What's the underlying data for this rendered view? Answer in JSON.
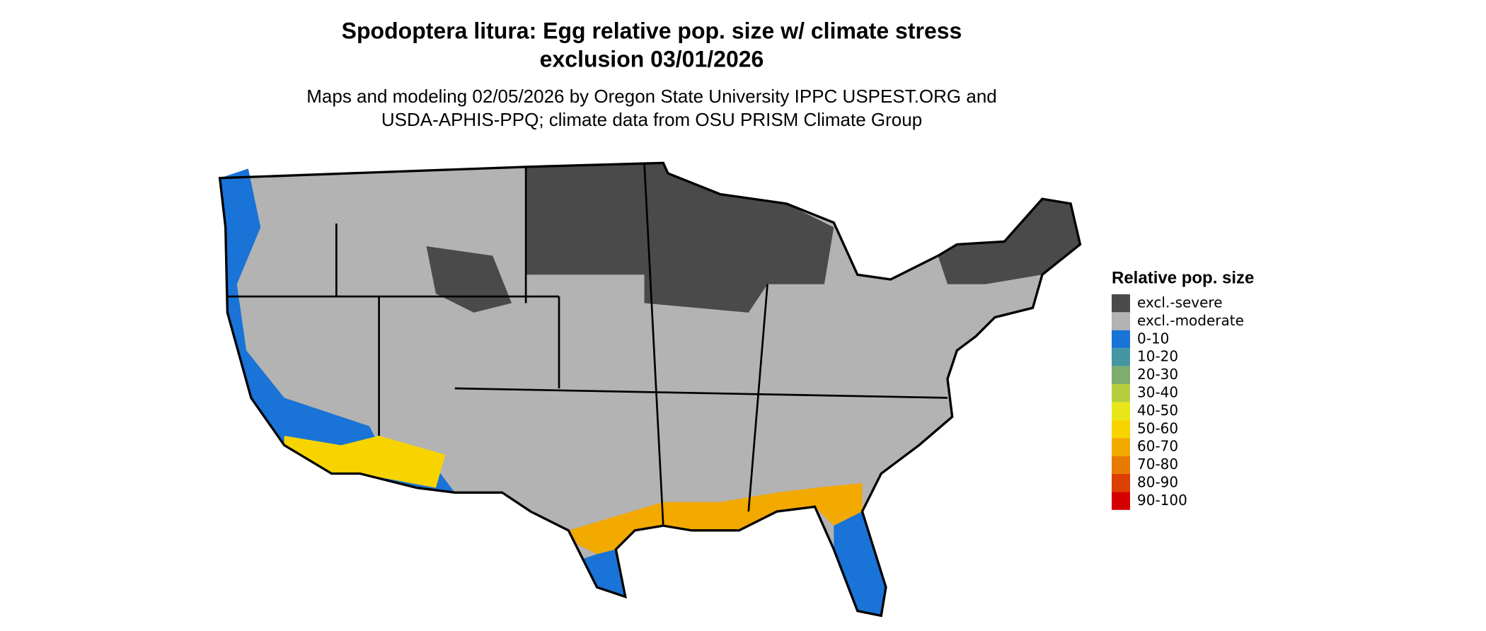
{
  "header": {
    "title_lines": [
      "Spodoptera litura: Egg relative pop. size w/ climate stress",
      "exclusion 03/01/2026"
    ],
    "subtitle_lines": [
      "Maps and modeling 02/05/2026 by Oregon State University IPPC USPEST.ORG and",
      "USDA-APHIS-PPQ; climate data from OSU PRISM Climate Group"
    ]
  },
  "legend": {
    "title": "Relative pop. size",
    "items": [
      {
        "label": "excl.-severe",
        "color": "#4a4a4a"
      },
      {
        "label": "excl.-moderate",
        "color": "#b3b3b3"
      },
      {
        "label": "0-10",
        "color": "#1a73d6"
      },
      {
        "label": "10-20",
        "color": "#4596a3"
      },
      {
        "label": "20-30",
        "color": "#7dae6e"
      },
      {
        "label": "30-40",
        "color": "#b5cf3c"
      },
      {
        "label": "40-50",
        "color": "#e6e619"
      },
      {
        "label": "50-60",
        "color": "#f7d400"
      },
      {
        "label": "60-70",
        "color": "#f2a900"
      },
      {
        "label": "70-80",
        "color": "#e87a00"
      },
      {
        "label": "80-90",
        "color": "#dc3f00"
      },
      {
        "label": "90-100",
        "color": "#d40000"
      }
    ]
  }
}
